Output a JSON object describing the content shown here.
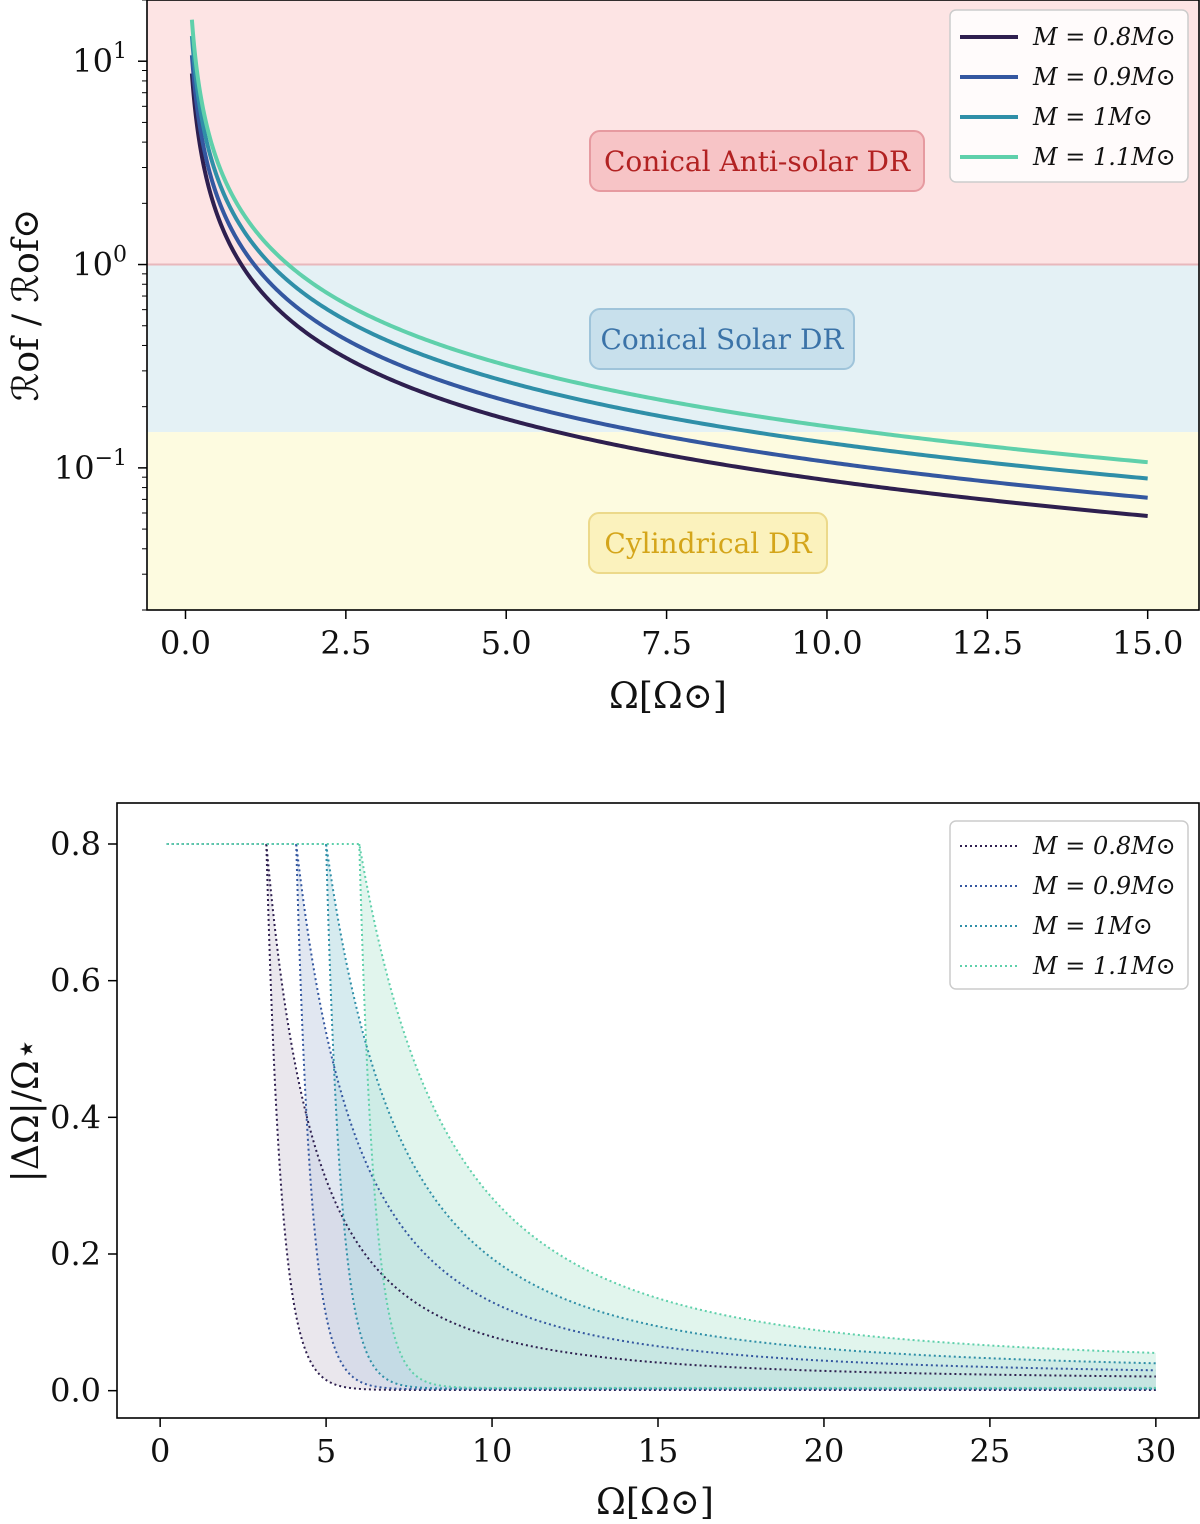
{
  "chart_data": [
    {
      "type": "line",
      "panel": "top",
      "x_scale": "linear",
      "y_scale": "log",
      "xlim": [
        -0.6,
        15.8
      ],
      "ylim": [
        0.02,
        20
      ],
      "xticks": [
        0,
        2.5,
        5,
        7.5,
        10,
        12.5,
        15
      ],
      "xtick_labels": [
        "0.0",
        "2.5",
        "5.0",
        "7.5",
        "10.0",
        "12.5",
        "15.0"
      ],
      "yticks": [
        {
          "value": 10,
          "base": "10",
          "exp": "1"
        },
        {
          "value": 1,
          "base": "10",
          "exp": "0"
        },
        {
          "value": 0.1,
          "base": "10",
          "exp": "−1"
        }
      ],
      "xlabel": "Ω[Ω⊙]",
      "ylabel": "ℛof / ℛof⊙",
      "regions": [
        {
          "label": "Conical Anti-solar DR",
          "y_from": 1,
          "y_to": 20,
          "fill": "#fde4e4",
          "box_fill": "#f7c4c6",
          "box_stroke": "#e69aa0",
          "text_color": "#b22222"
        },
        {
          "label": "Conical Solar DR",
          "y_from": 0.15,
          "y_to": 1,
          "fill": "#e4f1f5",
          "box_fill": "#c8e0ec",
          "box_stroke": "#9fc4da",
          "text_color": "#3b73a8"
        },
        {
          "label": "Cylindrical DR",
          "y_from": 0.02,
          "y_to": 0.15,
          "fill": "#fdfbe0",
          "box_fill": "#fbf2bd",
          "box_stroke": "#ecd98a",
          "text_color": "#d4a51a"
        }
      ],
      "legend_position": "top-right",
      "x_range": [
        0.1,
        15
      ],
      "series": [
        {
          "name": "M = 0.8M⊙",
          "label_main": "M = 0.8M",
          "color": "#2e1f4f",
          "coef": 0.87
        },
        {
          "name": "M = 0.9M⊙",
          "label_main": "M = 0.9M",
          "color": "#3457a0",
          "coef": 1.07
        },
        {
          "name": "M = 1M⊙",
          "label_main": "M = 1M",
          "color": "#2f8fa8",
          "coef": 1.33
        },
        {
          "name": "M = 1.1M⊙",
          "label_main": "M = 1.1M",
          "color": "#5fd0ab",
          "coef": 1.6
        }
      ]
    },
    {
      "type": "area",
      "panel": "bottom",
      "xlim": [
        -1.3,
        31.3
      ],
      "ylim": [
        -0.04,
        0.86
      ],
      "xticks": [
        0,
        5,
        10,
        15,
        20,
        25,
        30
      ],
      "xtick_labels": [
        "0",
        "5",
        "10",
        "15",
        "20",
        "25",
        "30"
      ],
      "yticks": [
        0.0,
        0.2,
        0.4,
        0.6,
        0.8
      ],
      "ytick_labels": [
        "0.0",
        "0.2",
        "0.4",
        "0.6",
        "0.8"
      ],
      "xlabel": "Ω[Ω⊙]",
      "ylabel": "|ΔΩ|/Ω⋆",
      "legend_position": "top-right",
      "plateau_value": 0.8,
      "x_range": [
        0.2,
        30
      ],
      "series": [
        {
          "name": "M = 0.8M⊙",
          "label_main": "M = 0.8M",
          "color": "#2e1f4f",
          "fill": "#d9d4df",
          "knee": 3.2,
          "upper_tail": 0.015,
          "lower_tail": 0.001
        },
        {
          "name": "M = 0.9M⊙",
          "label_main": "M = 0.9M",
          "color": "#3457a0",
          "fill": "#c9d3e6",
          "knee": 4.1,
          "upper_tail": 0.02,
          "lower_tail": 0.002
        },
        {
          "name": "M = 1M⊙",
          "label_main": "M = 1M",
          "color": "#2f8fa8",
          "fill": "#b5dbe2",
          "knee": 5.0,
          "upper_tail": 0.025,
          "lower_tail": 0.003
        },
        {
          "name": "M = 1.1M⊙",
          "label_main": "M = 1.1M",
          "color": "#5fd0ab",
          "fill": "#c9ecdf",
          "knee": 6.0,
          "upper_tail": 0.033,
          "lower_tail": 0.004
        }
      ]
    }
  ]
}
